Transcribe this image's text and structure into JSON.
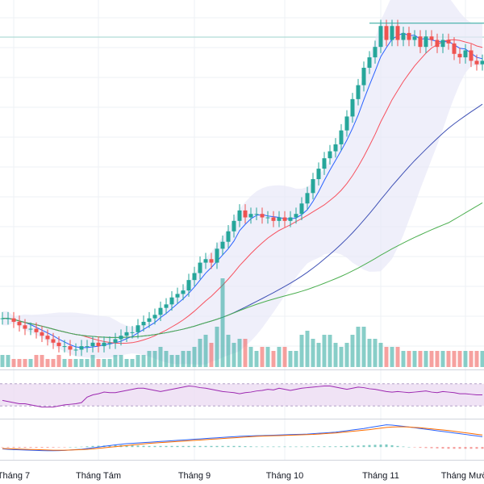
{
  "chart_data": {
    "type": "candlestick",
    "x_axis": {
      "tick_labels": [
        "Tháng 7",
        "Tháng Tám",
        "Tháng 9",
        "Tháng 10",
        "Tháng 11",
        "Tháng Mười"
      ],
      "tick_positions": [
        2,
        17,
        34,
        50,
        67,
        82
      ]
    },
    "colors": {
      "up": "#26a69a",
      "down": "#ef5350",
      "ma_fast": "#2962ff",
      "ma_mid": "#f7525f",
      "ma_slow": "#3f51b5",
      "ma_long": "#4caf50",
      "bollinger_fill": "#e8e8f8",
      "rsi_line": "#9c27b0",
      "rsi_band": "#ecdcf3",
      "macd_line": "#2962ff",
      "signal_line": "#ff6d00",
      "grid": "#eef1f4",
      "separator": "#d1d4dc",
      "cursor_line": "#9ed3cd"
    },
    "closes": [
      103,
      103,
      102.5,
      102,
      101.5,
      101.5,
      101,
      100.5,
      100,
      99.5,
      99,
      99,
      98.5,
      98.5,
      99,
      99,
      99.5,
      99,
      99.5,
      99.5,
      100,
      100.5,
      101,
      101,
      102,
      102.5,
      103,
      103.5,
      104.5,
      105,
      106,
      106.5,
      107,
      108.5,
      109.5,
      111,
      111.5,
      111,
      113,
      114,
      115.5,
      117,
      118.5,
      117.5,
      118,
      118,
      117.5,
      117.5,
      117,
      117.5,
      117,
      117.5,
      118,
      119.5,
      121,
      123,
      124.5,
      126,
      127,
      128,
      130,
      132,
      134.5,
      136.5,
      139,
      140.5,
      142,
      145,
      143,
      145,
      143,
      144,
      143,
      143.5,
      142,
      143.5,
      143,
      142,
      143,
      142.5,
      141,
      140.5,
      141.5,
      140,
      139.5,
      140
    ],
    "volumes": [
      3,
      3,
      2,
      2,
      2,
      2,
      3,
      3,
      2,
      2,
      3,
      2,
      2,
      2,
      2,
      2,
      3,
      2,
      2,
      2,
      3,
      3,
      2,
      2,
      3,
      3,
      4,
      4,
      5,
      4,
      3,
      3,
      4,
      4,
      5,
      7,
      8,
      6,
      10,
      22,
      8,
      6,
      7,
      7,
      5,
      4,
      5,
      5,
      4,
      5,
      5,
      4,
      4,
      8,
      9,
      7,
      6,
      8,
      8,
      6,
      5,
      6,
      8,
      10,
      10,
      7,
      7,
      6,
      5,
      5,
      5,
      4,
      4,
      4,
      4,
      4,
      4,
      4,
      4,
      4,
      4,
      4,
      4,
      4,
      4,
      4
    ],
    "rsi": [
      40,
      38,
      36,
      34,
      34,
      32,
      30,
      28,
      28,
      28,
      30,
      32,
      33,
      34,
      36,
      46,
      50,
      52,
      55,
      54,
      54,
      56,
      58,
      60,
      62,
      62,
      60,
      58,
      56,
      58,
      60,
      62,
      64,
      66,
      65,
      63,
      62,
      60,
      58,
      56,
      55,
      54,
      52,
      54,
      55,
      57,
      58,
      60,
      59,
      62,
      60,
      58,
      60,
      62,
      63,
      64,
      65,
      66,
      66,
      64,
      62,
      60,
      62,
      64,
      63,
      61,
      60,
      58,
      56,
      55,
      56,
      55,
      54,
      55,
      56,
      57,
      55,
      54,
      56,
      55,
      54,
      52,
      52,
      51,
      50,
      50
    ],
    "macd": [
      -1,
      -1.2,
      -1.4,
      -1.5,
      -1.6,
      -1.7,
      -1.8,
      -1.9,
      -2,
      -2,
      -1.9,
      -1.8,
      -1.6,
      -1.4,
      -1.2,
      -0.8,
      -0.4,
      0,
      0.4,
      0.8,
      1.2,
      1.5,
      1.8,
      2,
      2.2,
      2.4,
      2.6,
      2.8,
      3,
      3.2,
      3.4,
      3.6,
      3.8,
      4,
      4.2,
      4.4,
      4.6,
      4.8,
      5,
      5.2,
      5.4,
      5.6,
      5.8,
      5.9,
      6,
      6.1,
      6.2,
      6.3,
      6.4,
      6.5,
      6.6,
      6.7,
      6.8,
      6.9,
      7,
      7.2,
      7.4,
      7.6,
      7.8,
      8,
      8.4,
      8.8,
      9.2,
      9.6,
      10,
      10.5,
      11,
      11.5,
      12,
      11.8,
      11.5,
      11.2,
      10.8,
      10.4,
      10,
      9.6,
      9.2,
      8.8,
      8.4,
      8,
      7.6,
      7.2,
      6.8,
      6.4,
      6,
      5.6
    ],
    "signal": [
      -0.8,
      -0.9,
      -1,
      -1.1,
      -1.2,
      -1.3,
      -1.4,
      -1.5,
      -1.6,
      -1.7,
      -1.7,
      -1.7,
      -1.6,
      -1.5,
      -1.4,
      -1.2,
      -1,
      -0.7,
      -0.4,
      -0.1,
      0.2,
      0.5,
      0.8,
      1.1,
      1.4,
      1.7,
      2,
      2.2,
      2.4,
      2.6,
      2.8,
      3,
      3.2,
      3.4,
      3.6,
      3.8,
      4,
      4.2,
      4.4,
      4.6,
      4.8,
      5,
      5.2,
      5.4,
      5.6,
      5.8,
      5.9,
      6,
      6.1,
      6.2,
      6.3,
      6.4,
      6.5,
      6.6,
      6.7,
      6.8,
      7,
      7.2,
      7.4,
      7.6,
      7.9,
      8.2,
      8.5,
      8.8,
      9.1,
      9.4,
      9.8,
      10.2,
      10.6,
      10.8,
      10.9,
      10.9,
      10.8,
      10.6,
      10.4,
      10.1,
      9.8,
      9.5,
      9.2,
      8.9,
      8.5,
      8.1,
      7.7,
      7.3,
      6.9,
      6.5
    ]
  }
}
